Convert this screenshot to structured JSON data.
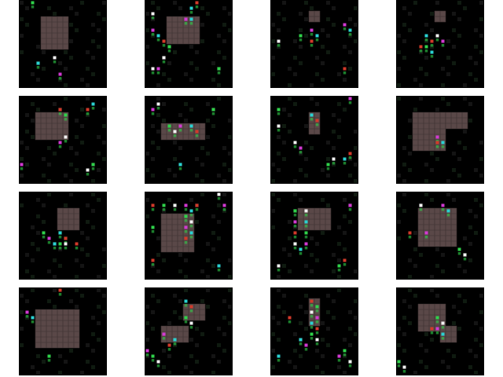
{
  "figure": {
    "layout": {
      "rows": 4,
      "cols": 4
    },
    "colors": {
      "background": "#ffffff",
      "tile_bg": "#000000",
      "block": "#5a4848",
      "block_grid": "#3b2f2f",
      "speck_green": "#2fd24a",
      "speck_white": "#f2f2f2",
      "speck_magenta": "#d23ad2",
      "speck_cyan": "#2ad2d2",
      "speck_red": "#d23a2a"
    },
    "tiles": [
      {
        "id": 1,
        "blocks": [
          [
            4,
            3,
            9,
            9
          ]
        ],
        "specks": [
          [
            2,
            0
          ],
          [
            6,
            10
          ],
          [
            7,
            13
          ],
          [
            3,
            11
          ]
        ]
      },
      {
        "id": 2,
        "blocks": [
          [
            4,
            3,
            10,
            8
          ]
        ],
        "specks": [
          [
            1,
            2
          ],
          [
            1,
            5
          ],
          [
            2,
            6
          ],
          [
            3,
            7
          ],
          [
            4,
            8
          ],
          [
            3,
            10
          ],
          [
            2,
            12
          ],
          [
            8,
            1
          ],
          [
            9,
            0
          ],
          [
            13,
            12
          ],
          [
            1,
            12
          ],
          [
            7,
            3
          ],
          [
            8,
            3
          ]
        ]
      },
      {
        "id": 3,
        "blocks": [
          [
            7,
            2,
            9,
            4
          ]
        ],
        "specks": [
          [
            7,
            5
          ],
          [
            8,
            6
          ],
          [
            7,
            7
          ],
          [
            5,
            6
          ],
          [
            1,
            7
          ],
          [
            13,
            4
          ],
          [
            14,
            5
          ],
          [
            13,
            12
          ]
        ]
      },
      {
        "id": 4,
        "blocks": [
          [
            7,
            2,
            9,
            4
          ]
        ],
        "specks": [
          [
            5,
            6
          ],
          [
            6,
            7
          ],
          [
            5,
            8
          ],
          [
            7,
            6
          ],
          [
            8,
            7
          ],
          [
            6,
            9
          ],
          [
            4,
            8
          ]
        ]
      },
      {
        "id": 5,
        "blocks": [
          [
            3,
            3,
            9,
            8
          ]
        ],
        "specks": [
          [
            7,
            2
          ],
          [
            8,
            3
          ],
          [
            8,
            7
          ],
          [
            7,
            8
          ],
          [
            13,
            1
          ],
          [
            12,
            2
          ],
          [
            13,
            12
          ],
          [
            12,
            13
          ],
          [
            0,
            12
          ]
        ]
      },
      {
        "id": 6,
        "blocks": [
          [
            3,
            5,
            11,
            8
          ]
        ],
        "specks": [
          [
            4,
            5
          ],
          [
            5,
            6
          ],
          [
            6,
            5
          ],
          [
            8,
            5
          ],
          [
            9,
            6
          ],
          [
            12,
            2
          ],
          [
            2,
            1
          ],
          [
            1,
            2
          ],
          [
            6,
            12
          ]
        ]
      },
      {
        "id": 7,
        "blocks": [
          [
            7,
            3,
            9,
            7
          ]
        ],
        "specks": [
          [
            4,
            8
          ],
          [
            5,
            9
          ],
          [
            7,
            3
          ],
          [
            8,
            4
          ],
          [
            1,
            2
          ],
          [
            1,
            5
          ],
          [
            14,
            0
          ],
          [
            13,
            11
          ],
          [
            14,
            10
          ],
          [
            10,
            12
          ],
          [
            11,
            11
          ]
        ]
      },
      {
        "id": 8,
        "blocks": [
          [
            3,
            3,
            9,
            10
          ],
          [
            9,
            3,
            13,
            6
          ]
        ],
        "specks": [
          [
            7,
            7
          ],
          [
            8,
            8
          ],
          [
            7,
            8
          ]
        ]
      },
      {
        "id": 9,
        "blocks": [
          [
            7,
            3,
            11,
            7
          ]
        ],
        "specks": [
          [
            7,
            7
          ],
          [
            8,
            8
          ],
          [
            7,
            9
          ],
          [
            8,
            9
          ],
          [
            5,
            8
          ],
          [
            6,
            9
          ],
          [
            10,
            9
          ],
          [
            4,
            7
          ]
        ]
      },
      {
        "id": 10,
        "blocks": [
          [
            3,
            4,
            9,
            11
          ]
        ],
        "specks": [
          [
            1,
            2
          ],
          [
            3,
            2
          ],
          [
            5,
            2
          ],
          [
            7,
            2
          ],
          [
            8,
            3
          ],
          [
            9,
            2
          ],
          [
            7,
            4
          ],
          [
            8,
            5
          ],
          [
            7,
            6
          ],
          [
            8,
            7
          ],
          [
            7,
            8
          ],
          [
            1,
            6
          ],
          [
            13,
            0
          ],
          [
            14,
            2
          ],
          [
            13,
            13
          ],
          [
            1,
            12
          ]
        ]
      },
      {
        "id": 11,
        "blocks": [
          [
            5,
            3,
            11,
            7
          ]
        ],
        "specks": [
          [
            4,
            3
          ],
          [
            6,
            3
          ],
          [
            4,
            5
          ],
          [
            6,
            5
          ],
          [
            4,
            7
          ],
          [
            6,
            7
          ],
          [
            4,
            9
          ],
          [
            6,
            9
          ],
          [
            5,
            10
          ],
          [
            13,
            12
          ],
          [
            12,
            13
          ],
          [
            1,
            13
          ],
          [
            14,
            2
          ]
        ]
      },
      {
        "id": 12,
        "blocks": [
          [
            4,
            3,
            11,
            10
          ]
        ],
        "specks": [
          [
            4,
            2
          ],
          [
            8,
            2
          ],
          [
            9,
            3
          ],
          [
            2,
            7
          ],
          [
            11,
            10
          ],
          [
            12,
            11
          ],
          [
            5,
            7
          ]
        ]
      },
      {
        "id": 13,
        "blocks": [
          [
            3,
            4,
            11,
            11
          ]
        ],
        "specks": [
          [
            1,
            4
          ],
          [
            2,
            5
          ],
          [
            7,
            0
          ],
          [
            5,
            12
          ]
        ]
      },
      {
        "id": 14,
        "blocks": [
          [
            7,
            3,
            11,
            6
          ],
          [
            3,
            7,
            8,
            10
          ]
        ],
        "specks": [
          [
            7,
            2
          ],
          [
            8,
            3
          ],
          [
            7,
            5
          ],
          [
            8,
            6
          ],
          [
            3,
            8
          ],
          [
            5,
            9
          ],
          [
            4,
            10
          ],
          [
            1,
            12
          ],
          [
            2,
            13
          ],
          [
            0,
            11
          ]
        ]
      },
      {
        "id": 15,
        "blocks": [
          [
            7,
            2,
            9,
            7
          ]
        ],
        "specks": [
          [
            7,
            2
          ],
          [
            8,
            3
          ],
          [
            7,
            4
          ],
          [
            8,
            5
          ],
          [
            7,
            6
          ],
          [
            8,
            7
          ],
          [
            7,
            8
          ],
          [
            8,
            9
          ],
          [
            6,
            10
          ],
          [
            5,
            9
          ],
          [
            3,
            5
          ],
          [
            13,
            11
          ],
          [
            14,
            13
          ],
          [
            12,
            12
          ],
          [
            1,
            12
          ]
        ]
      },
      {
        "id": 16,
        "blocks": [
          [
            4,
            3,
            9,
            8
          ],
          [
            8,
            7,
            11,
            10
          ]
        ],
        "specks": [
          [
            7,
            5
          ],
          [
            8,
            6
          ],
          [
            7,
            7
          ],
          [
            8,
            8
          ],
          [
            6,
            7
          ],
          [
            0,
            13
          ],
          [
            1,
            14
          ]
        ]
      }
    ]
  }
}
